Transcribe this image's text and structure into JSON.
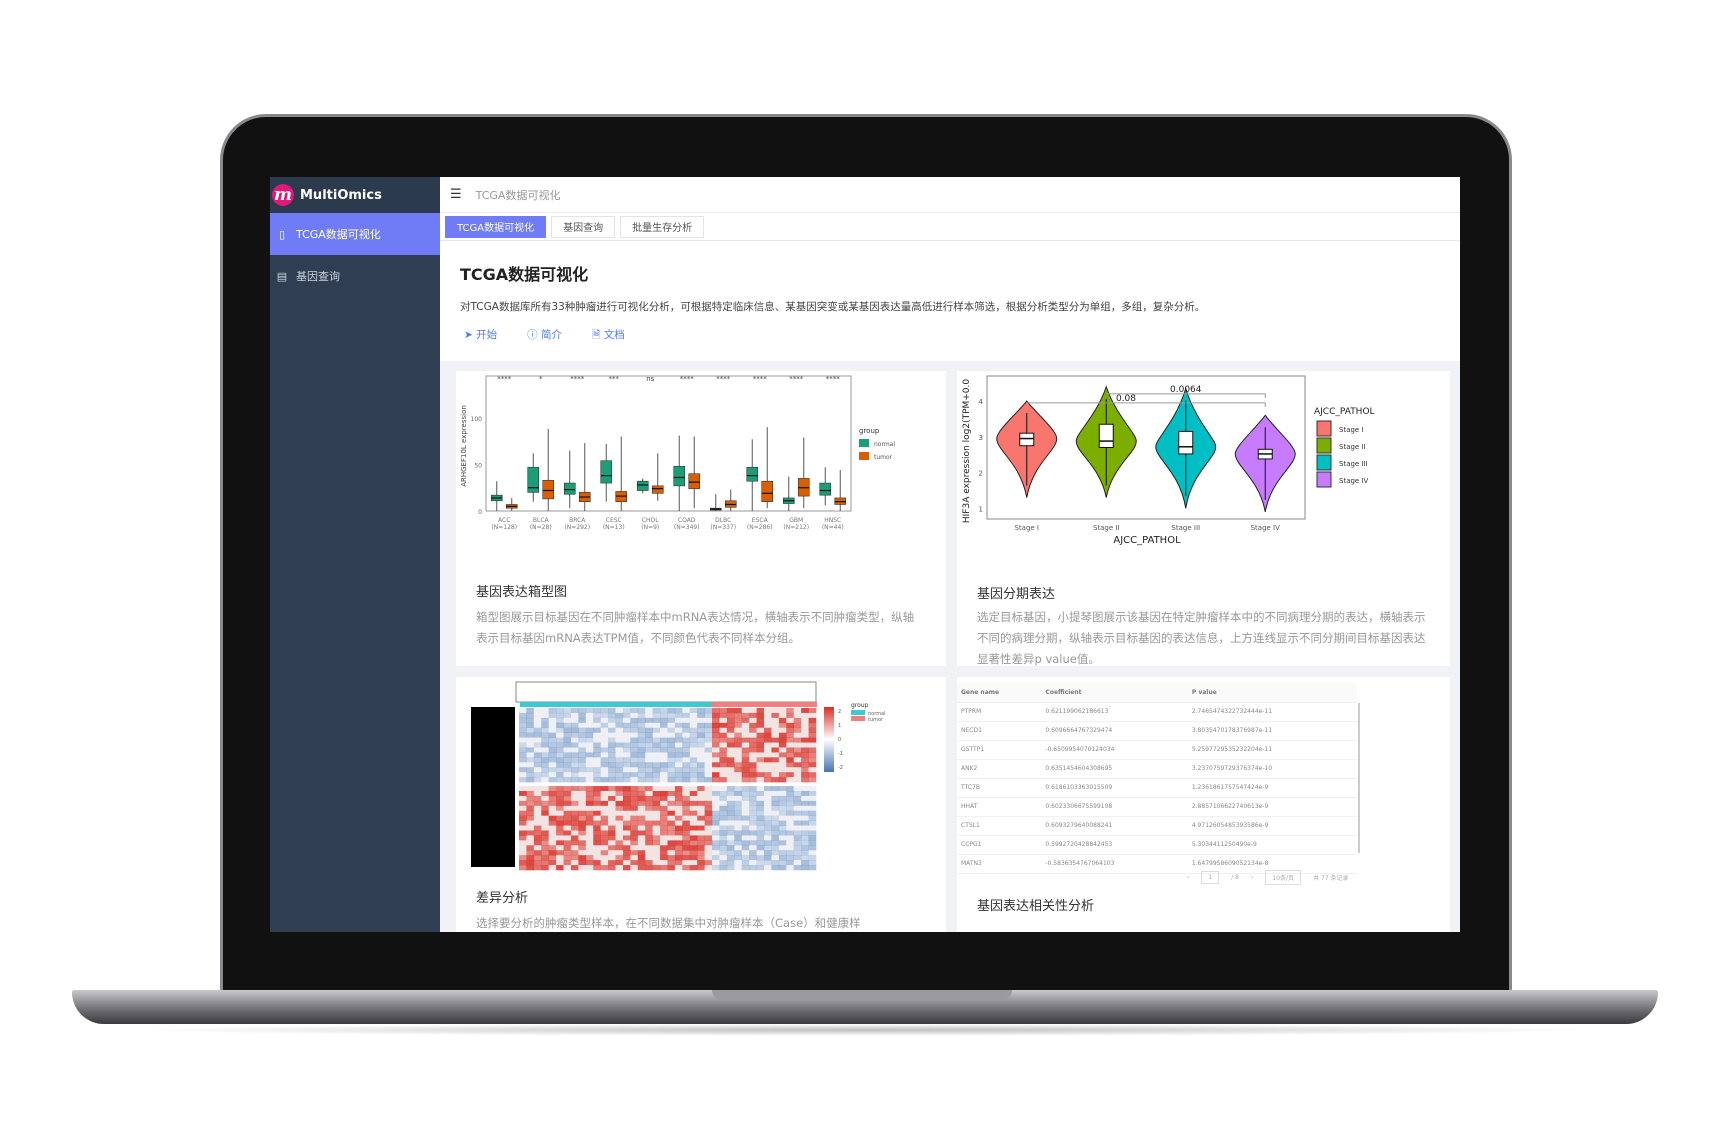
{
  "app": {
    "name": "MultiOmics",
    "logo_letter": "m"
  },
  "sidebar": {
    "items": [
      {
        "label": "TCGA数据可视化",
        "icon": "file-icon",
        "active": true
      },
      {
        "label": "基因查询",
        "icon": "list-icon",
        "active": false
      }
    ]
  },
  "topbar": {
    "breadcrumb": "TCGA数据可视化"
  },
  "tabs": [
    {
      "label": "TCGA数据可视化",
      "active": true
    },
    {
      "label": "基因查询"
    },
    {
      "label": "批量生存分析"
    }
  ],
  "intro": {
    "title": "TCGA数据可视化",
    "description": "对TCGA数据库所有33种肿瘤进行可视化分析，可根据特定临床信息、某基因突变或某基因表达量高低进行样本筛选，根据分析类型分为单组，多组，复杂分析。",
    "links": [
      {
        "label": "开始",
        "icon": "send-icon"
      },
      {
        "label": "简介",
        "icon": "info-icon"
      },
      {
        "label": "文档",
        "icon": "document-icon"
      }
    ]
  },
  "colors": {
    "accent": "#6f7cf5",
    "sidebar": "#2f3e52",
    "normal": "#1b9e77",
    "tumor": "#d95f02"
  },
  "cards": [
    {
      "title": "基因表达箱型图",
      "description": "箱型图展示目标基因在不同肿瘤样本中mRNA表达情况，横轴表示不同肿瘤类型，纵轴表示目标基因mRNA表达TPM值，不同颜色代表不同样本分组。"
    },
    {
      "title": "基因分期表达",
      "description": "选定目标基因，小提琴图展示该基因在特定肿瘤样本中的不同病理分期的表达，横轴表示不同的病理分期，纵轴表示目标基因的表达信息，上方连线显示不同分期间目标基因表达显著性差异p value值。"
    },
    {
      "title": "差异分析",
      "description": "选择要分析的肿瘤类型样本，在不同数据集中对肿瘤样本（Case）和健康样"
    },
    {
      "title": "基因表达相关性分析"
    }
  ],
  "chart_data": [
    {
      "type": "box",
      "ylabel": "ARHGEF10L expression",
      "yticks": [
        0,
        50,
        100
      ],
      "ylim": [
        0,
        145
      ],
      "legend_title": "group",
      "legend_position": "right",
      "categories": [
        "ACC",
        "BLCA",
        "BRCA",
        "CESC",
        "CHOL",
        "COAD",
        "DLBC",
        "ESCA",
        "GBM",
        "HNSC"
      ],
      "category_n": [
        "(N=128)",
        "(N=28)",
        "(N=292)",
        "(N=13)",
        "(N=9)",
        "(N=349)",
        "(N=337)",
        "(N=286)",
        "(N=212)",
        "(N=44)"
      ],
      "significance": [
        "****",
        "*",
        "****",
        "***",
        "ns",
        "****",
        "****",
        "****",
        "****",
        "****"
      ],
      "series": [
        {
          "name": "normal",
          "median": [
            14,
            25,
            23,
            38,
            28,
            36,
            2,
            38,
            11,
            22
          ],
          "q1": [
            11,
            20,
            18,
            30,
            22,
            27,
            1,
            32,
            8,
            17
          ],
          "q3": [
            17,
            47,
            30,
            54,
            32,
            48,
            3,
            47,
            14,
            30
          ],
          "min": [
            0,
            10,
            3,
            10,
            19,
            0,
            0,
            0,
            0,
            6
          ],
          "max": [
            32,
            62,
            65,
            72,
            35,
            81,
            18,
            77,
            37,
            47
          ]
        },
        {
          "name": "tumor",
          "median": [
            5,
            22,
            15,
            16,
            24,
            31,
            7,
            19,
            25,
            10
          ],
          "q1": [
            3,
            13,
            10,
            10,
            19,
            24,
            4,
            10,
            16,
            7
          ],
          "q3": [
            7,
            33,
            20,
            21,
            27,
            40,
            11,
            32,
            35,
            14
          ],
          "min": [
            0,
            0,
            0,
            0,
            11,
            3,
            0,
            3,
            3,
            0
          ],
          "max": [
            14,
            88,
            73,
            80,
            62,
            80,
            23,
            90,
            79,
            44
          ]
        }
      ]
    },
    {
      "type": "violin",
      "xlabel": "AJCC_PATHOL",
      "ylabel": "HIF3A expression log2(TPM+0.0",
      "yticks": [
        1,
        2,
        3,
        4
      ],
      "ylim": [
        0.7,
        4.7
      ],
      "legend_title": "AJCC_PATHOL",
      "legend_position": "right",
      "categories": [
        "Stage I",
        "Stage II",
        "Stage III",
        "Stage IV"
      ],
      "fill": [
        "#f8766d",
        "#7cae00",
        "#00bfc4",
        "#c77cff"
      ],
      "median": [
        2.95,
        2.88,
        2.72,
        2.52
      ],
      "q1": [
        2.75,
        2.7,
        2.52,
        2.38
      ],
      "q3": [
        3.1,
        3.35,
        3.15,
        2.65
      ],
      "min": [
        1.3,
        1.3,
        1.0,
        0.9
      ],
      "max": [
        4.0,
        4.4,
        4.35,
        3.6
      ],
      "comparisons": [
        {
          "label": "0.0064",
          "from": "Stage II",
          "to": "Stage IV",
          "y": 4.2
        },
        {
          "label": "0.08",
          "from": "Stage I",
          "to": "Stage IV",
          "y": 3.95
        }
      ]
    },
    {
      "type": "heatmap",
      "legend_title": "group",
      "legend": [
        "normal",
        "tumor"
      ],
      "legend_colors": [
        "#3ec9d0",
        "#f08080"
      ],
      "scale_ticks": [
        2,
        1,
        0,
        -1,
        -2
      ]
    }
  ],
  "table": {
    "columns": [
      "Gene name",
      "Coefficient",
      "P value"
    ],
    "rows": [
      [
        "PTPRM",
        "0.621199062186613",
        "2.7465474322732444e-11"
      ],
      [
        "NECD1",
        "0.6096664767329474",
        "3.8035470178376987e-11"
      ],
      [
        "GSTTP1",
        "-0.6509954070124034",
        "5.2597729535232204e-11"
      ],
      [
        "ANK2",
        "0.6351454604308695",
        "3.2370759729376374e-10"
      ],
      [
        "TTC7B",
        "0.6186103363015509",
        "1.2361861757547424e-9"
      ],
      [
        "HHAT",
        "0.6023306675599108",
        "2.8857106622740613e-9"
      ],
      [
        "CTSL1",
        "0.6093279640088241",
        "4.9712605485393586e-9"
      ],
      [
        "CCPG1",
        "0.5992720428842453",
        "5.3034411250490e-9"
      ],
      [
        "MATN3",
        "-0.5836354767064103",
        "1.6479958609052134e-8"
      ]
    ],
    "pagination": {
      "page": "1",
      "total_pages": "/ 8",
      "page_size": "10条/页",
      "total": "共 77 条记录"
    }
  }
}
